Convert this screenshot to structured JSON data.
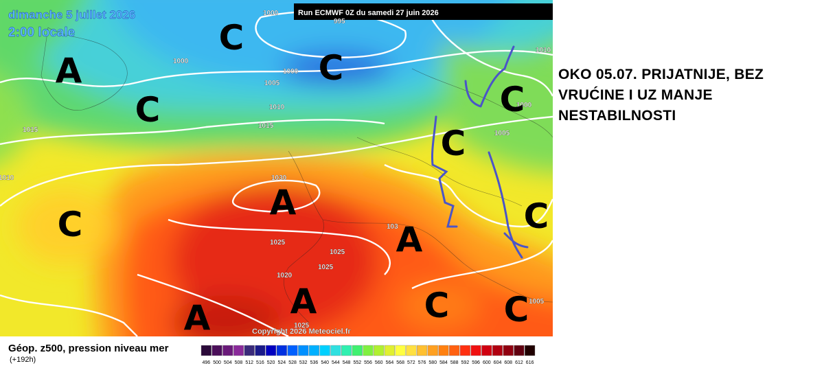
{
  "header": {
    "date": "dimanche 5 juillet 2026",
    "time": "2:00 locale",
    "run": "Run ECMWF 0Z du samedi 27 juin 2026"
  },
  "copyright": "Copyright 2026 Meteociel.fr",
  "legend": {
    "title": "Géop. z500, pression niveau mer",
    "lead": "(+192h)",
    "labels": [
      496,
      500,
      504,
      508,
      512,
      516,
      520,
      524,
      528,
      532,
      536,
      540,
      544,
      548,
      552,
      556,
      560,
      564,
      568,
      572,
      576,
      580,
      584,
      588,
      592,
      596,
      600,
      604,
      608,
      612,
      616
    ]
  },
  "pressure_labels": [
    1000,
    995,
    1000,
    1000,
    1005,
    1010,
    1015,
    1015,
    1010,
    1030,
    1025,
    1025,
    1025,
    1020,
    1025,
    103,
    1000,
    1005,
    1005,
    1010
  ],
  "pressure_centers": [
    "A",
    "C",
    "C",
    "C",
    "C",
    "A",
    "A",
    "C",
    "C",
    "C",
    "A",
    "A",
    "C",
    "C"
  ],
  "annotation": {
    "lines": [
      "OKO 05.07. PRIJATNIJE, BEZ",
      "VRUĆINE I UZ MANJE",
      "NESTABILNOSTI"
    ]
  }
}
